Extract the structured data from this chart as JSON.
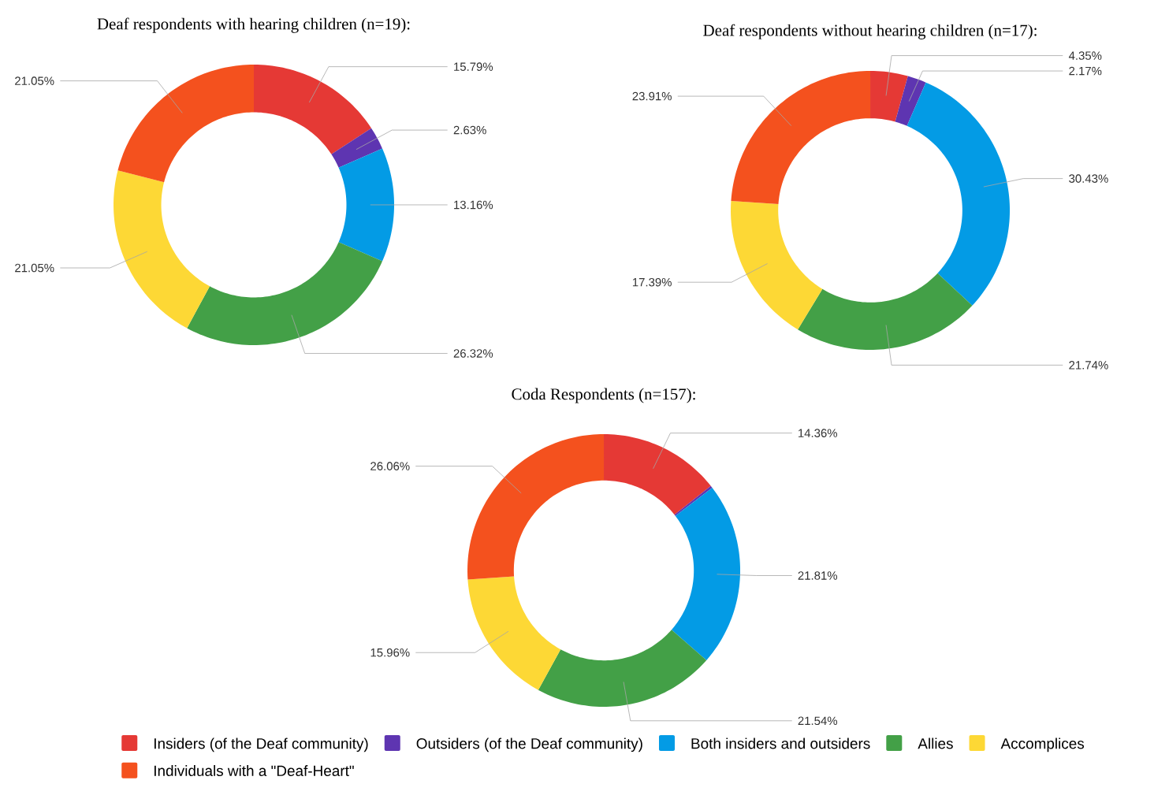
{
  "chart_data": [
    {
      "type": "donut",
      "title": "Deaf respondents with hearing children (n=19):",
      "categories": [
        null,
        null,
        null,
        null,
        null,
        null
      ],
      "values": [
        15.79,
        2.63,
        13.16,
        26.32,
        21.05,
        21.05
      ],
      "colors": [
        "#e53935",
        "#5e35b1",
        "#039be5",
        "#43a047",
        "#fdd835",
        "#f4511e"
      ],
      "value_labels": [
        "15.79%",
        "2.63%",
        "13.16%",
        "26.32%",
        "21.05%",
        "21.05%"
      ]
    },
    {
      "type": "donut",
      "title": "Deaf respondents without hearing children (n=17):",
      "categories": [
        null,
        null,
        null,
        null,
        null,
        null
      ],
      "values": [
        4.35,
        2.17,
        30.43,
        21.74,
        17.39,
        23.91
      ],
      "colors": [
        "#e53935",
        "#5e35b1",
        "#039be5",
        "#43a047",
        "#fdd835",
        "#f4511e"
      ],
      "value_labels": [
        "4.35%",
        "2.17%",
        "30.43%",
        "21.74%",
        "17.39%",
        "23.91%"
      ]
    },
    {
      "type": "donut",
      "title": "Coda Respondents (n=157):",
      "categories": [
        "Insiders (of the Deaf community)",
        "Outsiders (of the Deaf community)",
        "Both insiders and outsiders",
        "Allies",
        "Accomplices",
        "Individuals with a \"Deaf-Heart\""
      ],
      "values": [
        14.36,
        0.27,
        21.81,
        21.54,
        15.96,
        26.06
      ],
      "colors": [
        "#e53935",
        "#5e35b1",
        "#039be5",
        "#43a047",
        "#fdd835",
        "#f4511e"
      ],
      "value_labels": [
        "14.36%",
        null,
        "21.81%",
        "21.54%",
        "15.96%",
        "26.06%"
      ],
      "legend": "bottom"
    }
  ]
}
